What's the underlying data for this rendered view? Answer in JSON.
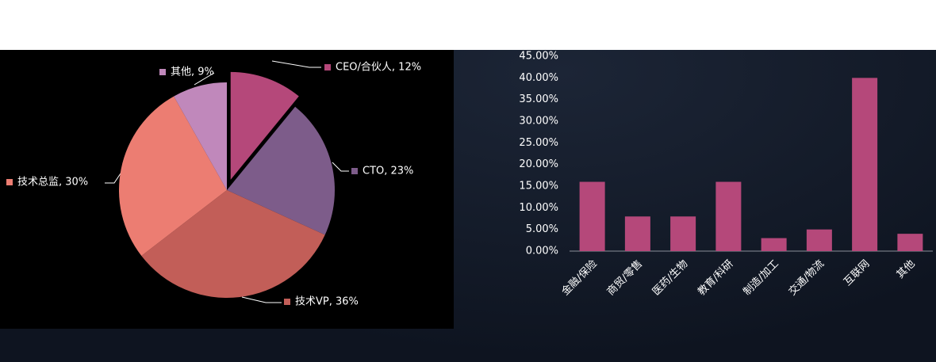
{
  "chart_data": [
    {
      "type": "pie",
      "categories": [
        "CEO/合伙人",
        "CTO",
        "技术VP",
        "技术总监",
        "其他"
      ],
      "labels": [
        "CEO/合伙人, 12%",
        "CTO, 23%",
        "技术VP, 36%",
        "技术总监, 30%",
        "其他, 9%"
      ],
      "values": [
        12,
        23,
        36,
        30,
        9
      ],
      "colors": [
        "#b5487a",
        "#7d5c8a",
        "#c25e58",
        "#ec7d72",
        "#c088bb"
      ]
    },
    {
      "type": "bar",
      "categories": [
        "金融/保险",
        "商贸/零售",
        "医药/生物",
        "教育/科研",
        "制造/加工",
        "交通/物流",
        "互联网",
        "其他"
      ],
      "values": [
        16,
        8,
        8,
        16,
        3,
        5,
        40,
        4
      ],
      "color": "#b5487a",
      "ylim": [
        0,
        45
      ],
      "yticks": [
        {
          "value": 0,
          "label": "0.00%"
        },
        {
          "value": 5,
          "label": "5.00%"
        },
        {
          "value": 10,
          "label": "10.00%"
        },
        {
          "value": 15,
          "label": "15.00%"
        },
        {
          "value": 20,
          "label": "20.00%"
        },
        {
          "value": 25,
          "label": "25.00%"
        },
        {
          "value": 30,
          "label": "30.00%"
        },
        {
          "value": 35,
          "label": "35.00%"
        },
        {
          "value": 40,
          "label": "40.00%"
        },
        {
          "value": 45,
          "label": "45.00%"
        }
      ]
    }
  ]
}
